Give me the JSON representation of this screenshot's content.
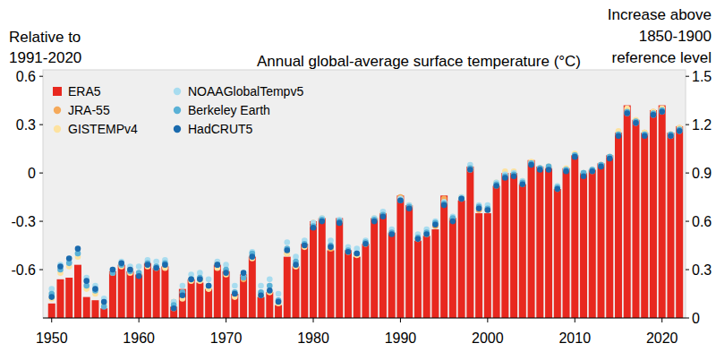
{
  "chart_data": {
    "type": "bar",
    "title": "Annual global-average surface temperature (°C)",
    "ylabel": [
      "Relative to",
      "1991-2020"
    ],
    "y2label": [
      "Increase above",
      "1850-1900",
      "reference level"
    ],
    "x": [
      1950,
      1951,
      1952,
      1953,
      1954,
      1955,
      1956,
      1957,
      1958,
      1959,
      1960,
      1961,
      1962,
      1963,
      1964,
      1965,
      1966,
      1967,
      1968,
      1969,
      1970,
      1971,
      1972,
      1973,
      1974,
      1975,
      1976,
      1977,
      1978,
      1979,
      1980,
      1981,
      1982,
      1983,
      1984,
      1985,
      1986,
      1987,
      1988,
      1989,
      1990,
      1991,
      1992,
      1993,
      1994,
      1995,
      1996,
      1997,
      1998,
      1999,
      2000,
      2001,
      2002,
      2003,
      2004,
      2005,
      2006,
      2007,
      2008,
      2009,
      2010,
      2011,
      2012,
      2013,
      2014,
      2015,
      2016,
      2017,
      2018,
      2019,
      2020,
      2021,
      2022
    ],
    "xlim": [
      1949,
      2022.7
    ],
    "xticks": [
      1950,
      1960,
      1970,
      1980,
      1990,
      2000,
      2010,
      2020
    ],
    "ylim": [
      -0.9,
      0.64
    ],
    "yticks": [
      -0.6,
      -0.3,
      0,
      0.3,
      0.6
    ],
    "y2lim": [
      0,
      1.54
    ],
    "y2ticks": [
      0,
      0.3,
      0.6,
      0.9,
      1.2,
      1.5
    ],
    "grid": false,
    "legend": "upper left",
    "series": [
      {
        "name": "ERA5",
        "type": "bar",
        "marker": "square",
        "color": "#e8281f",
        "values": [
          -0.81,
          -0.66,
          -0.65,
          -0.57,
          -0.77,
          -0.79,
          -0.84,
          -0.61,
          -0.57,
          -0.61,
          -0.63,
          -0.56,
          -0.59,
          -0.58,
          -0.83,
          -0.72,
          -0.66,
          -0.68,
          -0.72,
          -0.57,
          -0.61,
          -0.75,
          -0.63,
          -0.52,
          -0.77,
          -0.74,
          -0.82,
          -0.52,
          -0.58,
          -0.44,
          -0.3,
          -0.28,
          -0.48,
          -0.28,
          -0.48,
          -0.52,
          -0.44,
          -0.28,
          -0.25,
          -0.37,
          -0.14,
          -0.2,
          -0.42,
          -0.39,
          -0.35,
          -0.14,
          -0.28,
          -0.17,
          0.04,
          -0.25,
          -0.25,
          -0.08,
          0.0,
          0.0,
          -0.07,
          0.08,
          0.04,
          0.03,
          -0.1,
          0.03,
          0.11,
          0.0,
          0.02,
          0.06,
          0.11,
          0.25,
          0.42,
          0.33,
          0.25,
          0.39,
          0.42,
          0.25,
          0.29
        ]
      },
      {
        "name": "JRA-55",
        "type": "scatter",
        "marker": "circle",
        "color": "#f5a95a",
        "values": [
          null,
          null,
          null,
          null,
          null,
          null,
          null,
          null,
          -0.57,
          -0.6,
          -0.63,
          -0.56,
          -0.59,
          -0.58,
          -0.8,
          -0.74,
          -0.66,
          -0.66,
          -0.72,
          -0.56,
          -0.61,
          -0.76,
          -0.66,
          -0.52,
          -0.76,
          -0.74,
          -0.8,
          -0.5,
          -0.58,
          -0.45,
          -0.31,
          -0.29,
          -0.47,
          -0.3,
          -0.49,
          -0.51,
          -0.44,
          -0.29,
          -0.25,
          -0.37,
          -0.15,
          -0.21,
          -0.41,
          -0.38,
          -0.33,
          -0.16,
          -0.28,
          -0.16,
          0.03,
          -0.23,
          -0.23,
          -0.08,
          -0.01,
          -0.01,
          -0.07,
          0.06,
          0.03,
          0.03,
          -0.1,
          0.02,
          0.11,
          -0.01,
          0.01,
          0.05,
          0.1,
          0.25,
          0.39,
          0.32,
          0.25,
          0.38,
          0.4,
          0.24,
          0.28
        ]
      },
      {
        "name": "GISTEMPv4",
        "type": "scatter",
        "marker": "circle",
        "color": "#fde2a0",
        "values": [
          -0.78,
          -0.62,
          -0.58,
          -0.52,
          -0.72,
          -0.75,
          -0.82,
          -0.62,
          -0.58,
          -0.62,
          -0.63,
          -0.58,
          -0.59,
          -0.59,
          -0.84,
          -0.78,
          -0.67,
          -0.67,
          -0.72,
          -0.59,
          -0.63,
          -0.77,
          -0.64,
          -0.53,
          -0.76,
          -0.74,
          -0.81,
          -0.5,
          -0.58,
          -0.46,
          -0.33,
          -0.28,
          -0.46,
          -0.3,
          -0.49,
          -0.51,
          -0.44,
          -0.28,
          -0.25,
          -0.37,
          -0.16,
          -0.2,
          -0.41,
          -0.38,
          -0.31,
          -0.18,
          -0.29,
          -0.15,
          0.02,
          -0.22,
          -0.22,
          -0.06,
          0.01,
          0.01,
          -0.05,
          0.07,
          0.03,
          0.04,
          -0.09,
          0.03,
          0.12,
          0.0,
          0.02,
          0.05,
          0.1,
          0.26,
          0.4,
          0.33,
          0.25,
          0.38,
          0.4,
          0.24,
          0.28
        ]
      },
      {
        "name": "NOAAGlobalTempv5",
        "type": "scatter",
        "marker": "circle",
        "color": "#a8dcef",
        "values": [
          -0.72,
          -0.57,
          -0.55,
          -0.5,
          -0.65,
          -0.7,
          -0.78,
          -0.6,
          -0.55,
          -0.58,
          -0.58,
          -0.54,
          -0.55,
          -0.54,
          -0.8,
          -0.7,
          -0.63,
          -0.62,
          -0.66,
          -0.55,
          -0.57,
          -0.7,
          -0.64,
          -0.49,
          -0.7,
          -0.66,
          -0.75,
          -0.43,
          -0.52,
          -0.42,
          -0.31,
          -0.28,
          -0.42,
          -0.29,
          -0.46,
          -0.47,
          -0.42,
          -0.28,
          -0.24,
          -0.35,
          -0.16,
          -0.2,
          -0.38,
          -0.35,
          -0.3,
          -0.18,
          -0.27,
          -0.15,
          0.05,
          -0.2,
          -0.2,
          -0.06,
          -0.01,
          0.0,
          -0.05,
          0.06,
          0.03,
          0.03,
          -0.08,
          0.02,
          0.11,
          0.0,
          0.02,
          0.05,
          0.1,
          0.24,
          0.37,
          0.31,
          0.24,
          0.36,
          0.38,
          0.23,
          0.26
        ]
      },
      {
        "name": "Berkeley Earth",
        "type": "scatter",
        "marker": "circle",
        "color": "#5ab1d6",
        "values": [
          -0.75,
          -0.6,
          -0.56,
          -0.5,
          -0.7,
          -0.73,
          -0.83,
          -0.62,
          -0.57,
          -0.61,
          -0.62,
          -0.56,
          -0.58,
          -0.56,
          -0.82,
          -0.74,
          -0.66,
          -0.65,
          -0.7,
          -0.57,
          -0.6,
          -0.74,
          -0.65,
          -0.5,
          -0.74,
          -0.7,
          -0.79,
          -0.47,
          -0.55,
          -0.44,
          -0.33,
          -0.29,
          -0.45,
          -0.3,
          -0.48,
          -0.5,
          -0.43,
          -0.29,
          -0.26,
          -0.37,
          -0.17,
          -0.21,
          -0.4,
          -0.37,
          -0.31,
          -0.19,
          -0.28,
          -0.16,
          0.03,
          -0.21,
          -0.22,
          -0.07,
          -0.02,
          -0.01,
          -0.06,
          0.06,
          0.03,
          0.04,
          -0.09,
          0.02,
          0.11,
          0.0,
          0.02,
          0.05,
          0.1,
          0.24,
          0.38,
          0.32,
          0.24,
          0.37,
          0.39,
          0.24,
          0.27
        ]
      },
      {
        "name": "HadCRUT5",
        "type": "scatter",
        "marker": "circle",
        "color": "#1a6aad",
        "values": [
          -0.77,
          -0.58,
          -0.53,
          -0.47,
          -0.67,
          -0.72,
          -0.8,
          -0.6,
          -0.56,
          -0.6,
          -0.64,
          -0.57,
          -0.59,
          -0.57,
          -0.84,
          -0.76,
          -0.66,
          -0.66,
          -0.7,
          -0.57,
          -0.62,
          -0.75,
          -0.62,
          -0.52,
          -0.76,
          -0.73,
          -0.8,
          -0.48,
          -0.57,
          -0.45,
          -0.34,
          -0.3,
          -0.46,
          -0.31,
          -0.49,
          -0.5,
          -0.44,
          -0.3,
          -0.27,
          -0.38,
          -0.17,
          -0.22,
          -0.41,
          -0.38,
          -0.32,
          -0.2,
          -0.3,
          -0.16,
          0.02,
          -0.22,
          -0.23,
          -0.08,
          -0.03,
          -0.02,
          -0.07,
          0.05,
          0.02,
          0.02,
          -0.1,
          0.01,
          0.1,
          -0.02,
          0.01,
          0.04,
          0.09,
          0.23,
          0.37,
          0.31,
          0.23,
          0.36,
          0.38,
          0.23,
          0.26
        ]
      }
    ]
  }
}
